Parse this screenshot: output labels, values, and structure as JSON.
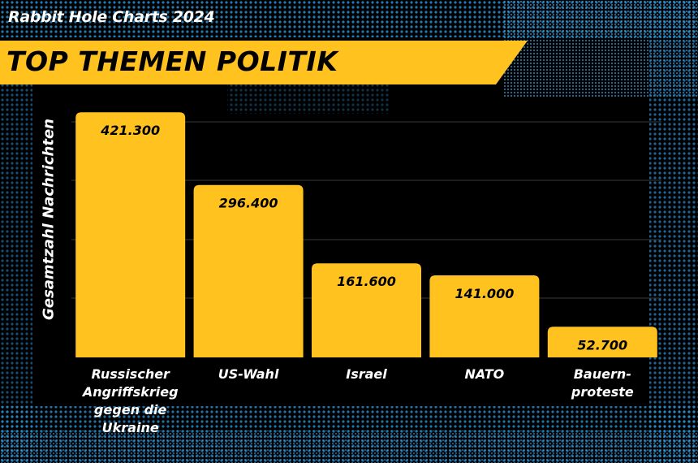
{
  "header": {
    "kicker": "Rabbit Hole Charts 2024"
  },
  "colors": {
    "bar": "#FFC21F",
    "background": "#000000",
    "texture": "#2A8FD0",
    "gridline": "#3a3a3a"
  },
  "chart_data": {
    "type": "bar",
    "title": "TOP THEMEN POLITIK",
    "ylabel": "Gesamtzahl Nachrichten",
    "xlabel": "",
    "categories": [
      "Russischer Angriffskrieg gegen die Ukraine",
      "US-Wahl",
      "Israel",
      "NATO",
      "Bauern-proteste"
    ],
    "category_lines": [
      [
        "Russischer",
        "Angriffskrieg",
        "gegen die",
        "Ukraine"
      ],
      [
        "US-Wahl"
      ],
      [
        "Israel"
      ],
      [
        "NATO"
      ],
      [
        "Bauern-",
        "proteste"
      ]
    ],
    "values": [
      421300,
      296400,
      161600,
      141000,
      52700
    ],
    "value_labels": [
      "421.300",
      "296.400",
      "161.600",
      "141.000",
      "52.700"
    ],
    "ylim": [
      0,
      430000
    ],
    "grid": true,
    "legend": "none"
  }
}
